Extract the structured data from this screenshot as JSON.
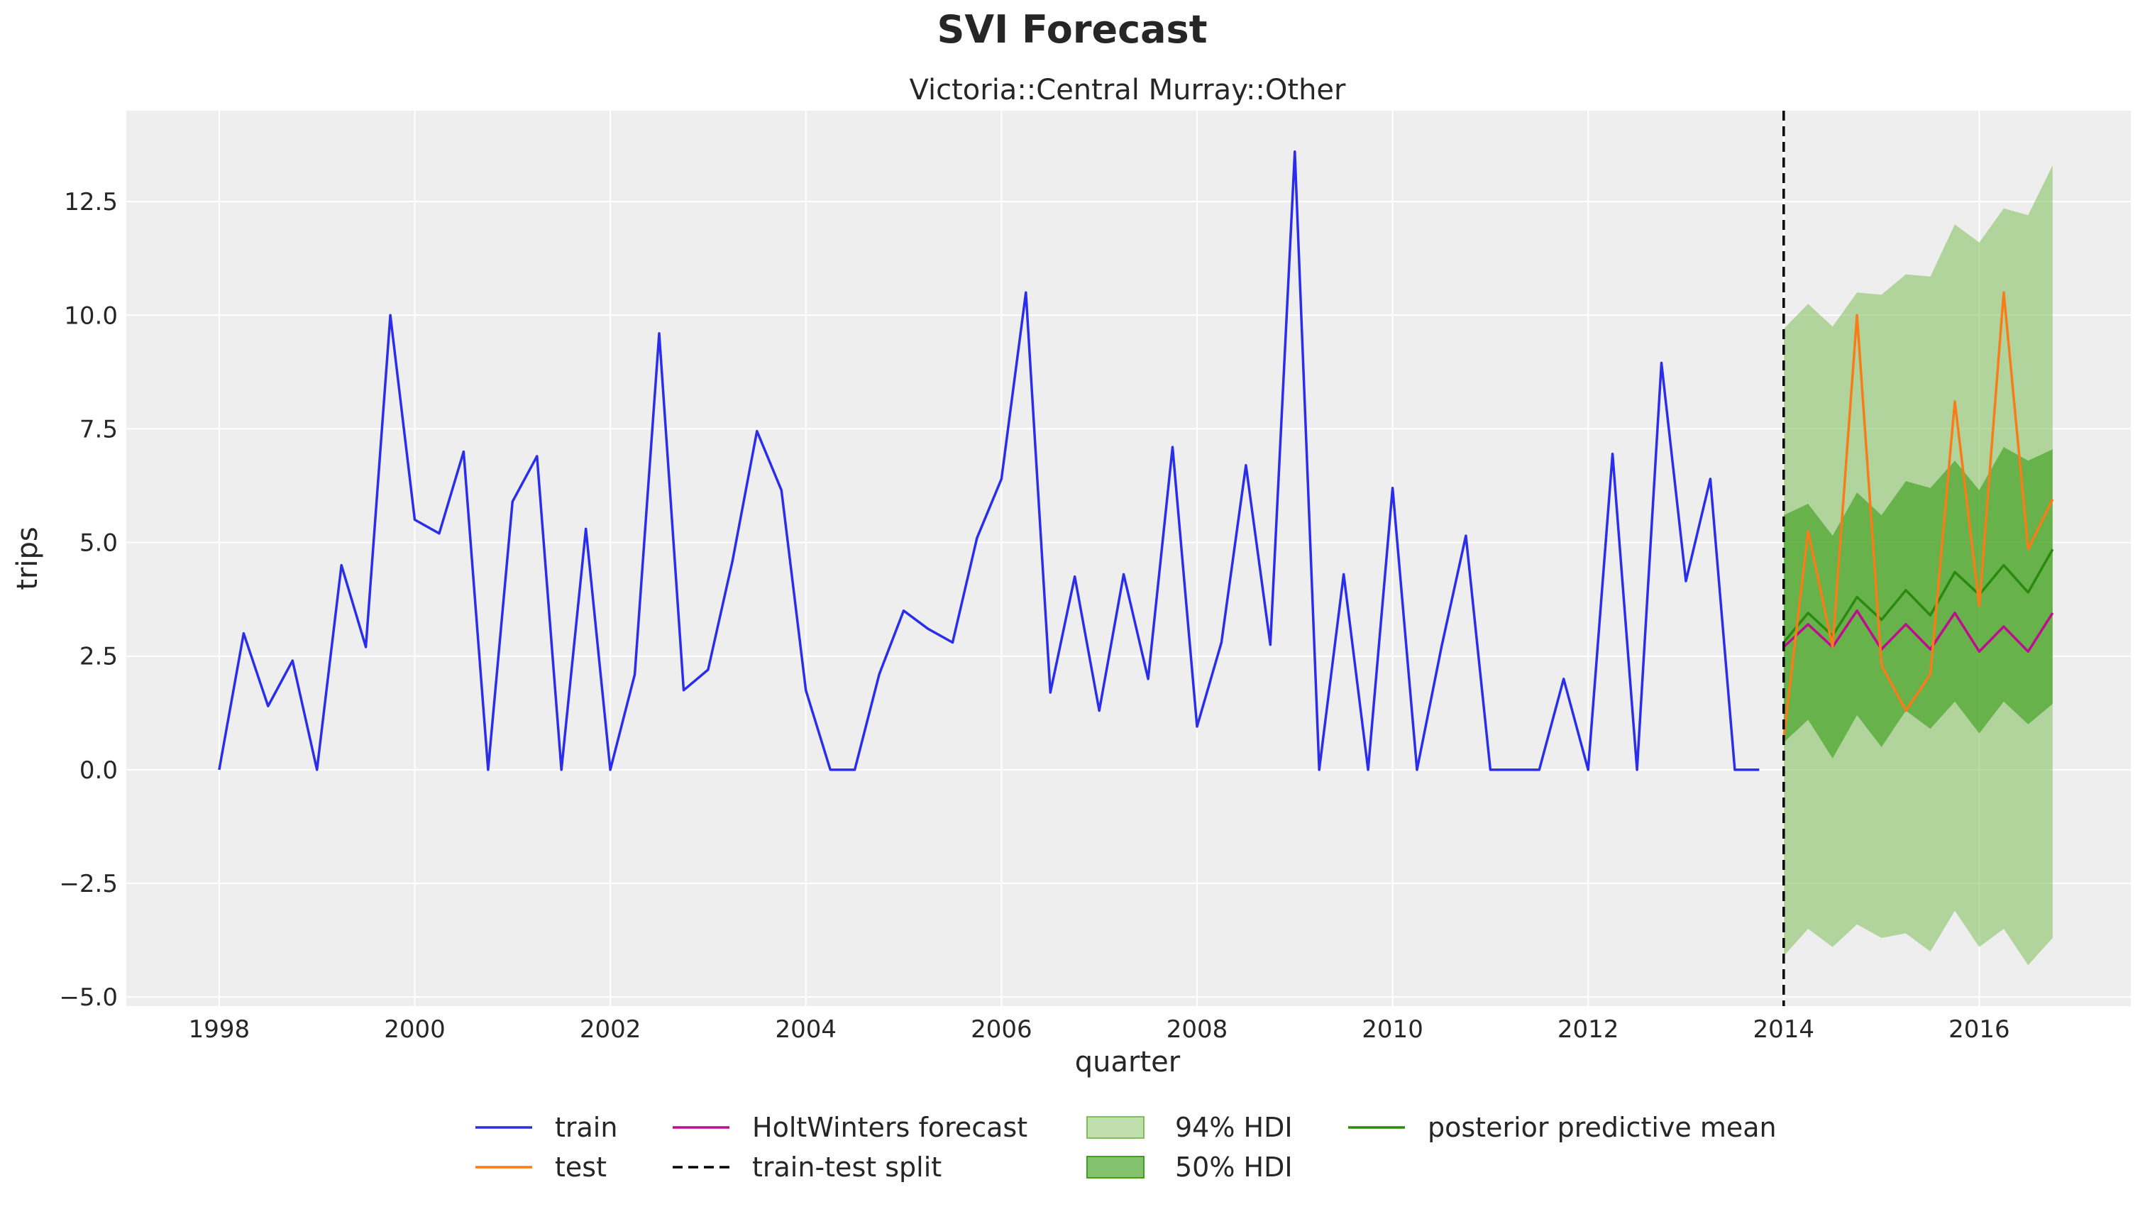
{
  "chart_data": {
    "type": "line",
    "suptitle": "SVI Forecast",
    "title": "Victoria::Central Murray::Other",
    "xlabel": "quarter",
    "ylabel": "trips",
    "xlim": [
      1997.05,
      2017.55
    ],
    "ylim": [
      -5.2,
      14.5
    ],
    "xticks": [
      1998,
      2000,
      2002,
      2004,
      2006,
      2008,
      2010,
      2012,
      2014,
      2016
    ],
    "yticks": [
      -5.0,
      -2.5,
      0.0,
      2.5,
      5.0,
      7.5,
      10.0,
      12.5
    ],
    "ytick_labels": [
      "−5.0",
      "−2.5",
      "0.0",
      "2.5",
      "5.0",
      "7.5",
      "10.0",
      "12.5"
    ],
    "grid": true,
    "legend_position": "bottom-center",
    "split_x": 2014.0,
    "colors": {
      "train": "#2a2eec",
      "test": "#fa7c17",
      "holtwinters": "#c10c90",
      "split": "#000000",
      "hdi94": "#7fbf5a",
      "hdi50": "#3f9f1f",
      "pp_mean": "#2a8a0e",
      "background": "#eeeeee",
      "grid": "#ffffff"
    },
    "series": [
      {
        "name": "train",
        "x": [
          1998.0,
          1998.25,
          1998.5,
          1998.75,
          1999.0,
          1999.25,
          1999.5,
          1999.75,
          2000.0,
          2000.25,
          2000.5,
          2000.75,
          2001.0,
          2001.25,
          2001.5,
          2001.75,
          2002.0,
          2002.25,
          2002.5,
          2002.75,
          2003.0,
          2003.25,
          2003.5,
          2003.75,
          2004.0,
          2004.25,
          2004.5,
          2004.75,
          2005.0,
          2005.25,
          2005.5,
          2005.75,
          2006.0,
          2006.25,
          2006.5,
          2006.75,
          2007.0,
          2007.25,
          2007.5,
          2007.75,
          2008.0,
          2008.25,
          2008.5,
          2008.75,
          2009.0,
          2009.25,
          2009.5,
          2009.75,
          2010.0,
          2010.25,
          2010.5,
          2010.75,
          2011.0,
          2011.25,
          2011.5,
          2011.75,
          2012.0,
          2012.25,
          2012.5,
          2012.75,
          2013.0,
          2013.25,
          2013.5,
          2013.75
        ],
        "values": [
          0.0,
          3.0,
          1.4,
          2.4,
          0.0,
          4.5,
          2.7,
          10.0,
          5.5,
          5.2,
          7.0,
          0.0,
          5.9,
          6.9,
          0.0,
          5.3,
          0.0,
          2.1,
          9.6,
          1.75,
          2.2,
          4.6,
          7.45,
          6.15,
          1.75,
          0.0,
          0.0,
          2.1,
          3.5,
          3.1,
          2.8,
          5.1,
          6.4,
          10.5,
          1.7,
          4.25,
          1.3,
          4.3,
          2.0,
          7.1,
          0.95,
          2.8,
          6.7,
          2.75,
          13.6,
          0.0,
          4.3,
          0.0,
          6.2,
          0.0,
          2.7,
          5.15,
          0.0,
          0.0,
          0.0,
          2.0,
          0.0,
          6.95,
          0.0,
          8.95,
          4.15,
          6.4,
          0.0,
          0.0
        ]
      },
      {
        "name": "test",
        "x": [
          2014.0,
          2014.25,
          2014.5,
          2014.75,
          2015.0,
          2015.25,
          2015.5,
          2015.75,
          2016.0,
          2016.25,
          2016.5,
          2016.75
        ],
        "values": [
          0.7,
          5.25,
          2.7,
          10.0,
          2.3,
          1.3,
          2.1,
          8.1,
          3.6,
          10.5,
          4.85,
          5.95
        ]
      },
      {
        "name": "HoltWinters forecast",
        "x": [
          2014.0,
          2014.25,
          2014.5,
          2014.75,
          2015.0,
          2015.25,
          2015.5,
          2015.75,
          2016.0,
          2016.25,
          2016.5,
          2016.75
        ],
        "values": [
          2.7,
          3.2,
          2.7,
          3.5,
          2.65,
          3.2,
          2.65,
          3.45,
          2.6,
          3.15,
          2.6,
          3.45
        ]
      },
      {
        "name": "posterior predictive mean",
        "x": [
          2014.0,
          2014.25,
          2014.5,
          2014.75,
          2015.0,
          2015.25,
          2015.5,
          2015.75,
          2016.0,
          2016.25,
          2016.5,
          2016.75
        ],
        "values": [
          2.8,
          3.45,
          2.95,
          3.8,
          3.3,
          3.95,
          3.4,
          4.35,
          3.85,
          4.5,
          3.9,
          4.85
        ]
      }
    ],
    "bands": [
      {
        "name": "94% HDI",
        "x": [
          2014.0,
          2014.25,
          2014.5,
          2014.75,
          2015.0,
          2015.25,
          2015.5,
          2015.75,
          2016.0,
          2016.25,
          2016.5,
          2016.75
        ],
        "lower": [
          -4.1,
          -3.5,
          -3.9,
          -3.4,
          -3.7,
          -3.6,
          -4.0,
          -3.1,
          -3.9,
          -3.5,
          -4.3,
          -3.7
        ],
        "upper": [
          9.7,
          10.25,
          9.75,
          10.5,
          10.45,
          10.9,
          10.85,
          12.0,
          11.6,
          12.35,
          12.2,
          13.3
        ]
      },
      {
        "name": "50% HDI",
        "x": [
          2014.0,
          2014.25,
          2014.5,
          2014.75,
          2015.0,
          2015.25,
          2015.5,
          2015.75,
          2016.0,
          2016.25,
          2016.5,
          2016.75
        ],
        "lower": [
          0.6,
          1.1,
          0.25,
          1.2,
          0.5,
          1.3,
          0.9,
          1.5,
          0.8,
          1.5,
          1.0,
          1.45
        ],
        "upper": [
          5.6,
          5.85,
          5.15,
          6.1,
          5.6,
          6.35,
          6.2,
          6.8,
          6.15,
          7.1,
          6.8,
          7.05
        ]
      }
    ],
    "legend": [
      {
        "label": "train",
        "kind": "line",
        "color": "#2a2eec"
      },
      {
        "label": "test",
        "kind": "line",
        "color": "#fa7c17"
      },
      {
        "label": "HoltWinters forecast",
        "kind": "line",
        "color": "#c10c90"
      },
      {
        "label": "train-test split",
        "kind": "dashed",
        "color": "#000000"
      },
      {
        "label": "94% HDI",
        "kind": "patch",
        "color": "#7fbf5a"
      },
      {
        "label": "50% HDI",
        "kind": "patch",
        "color": "#3f9f1f"
      },
      {
        "label": "posterior predictive mean",
        "kind": "line",
        "color": "#2a8a0e"
      }
    ]
  }
}
